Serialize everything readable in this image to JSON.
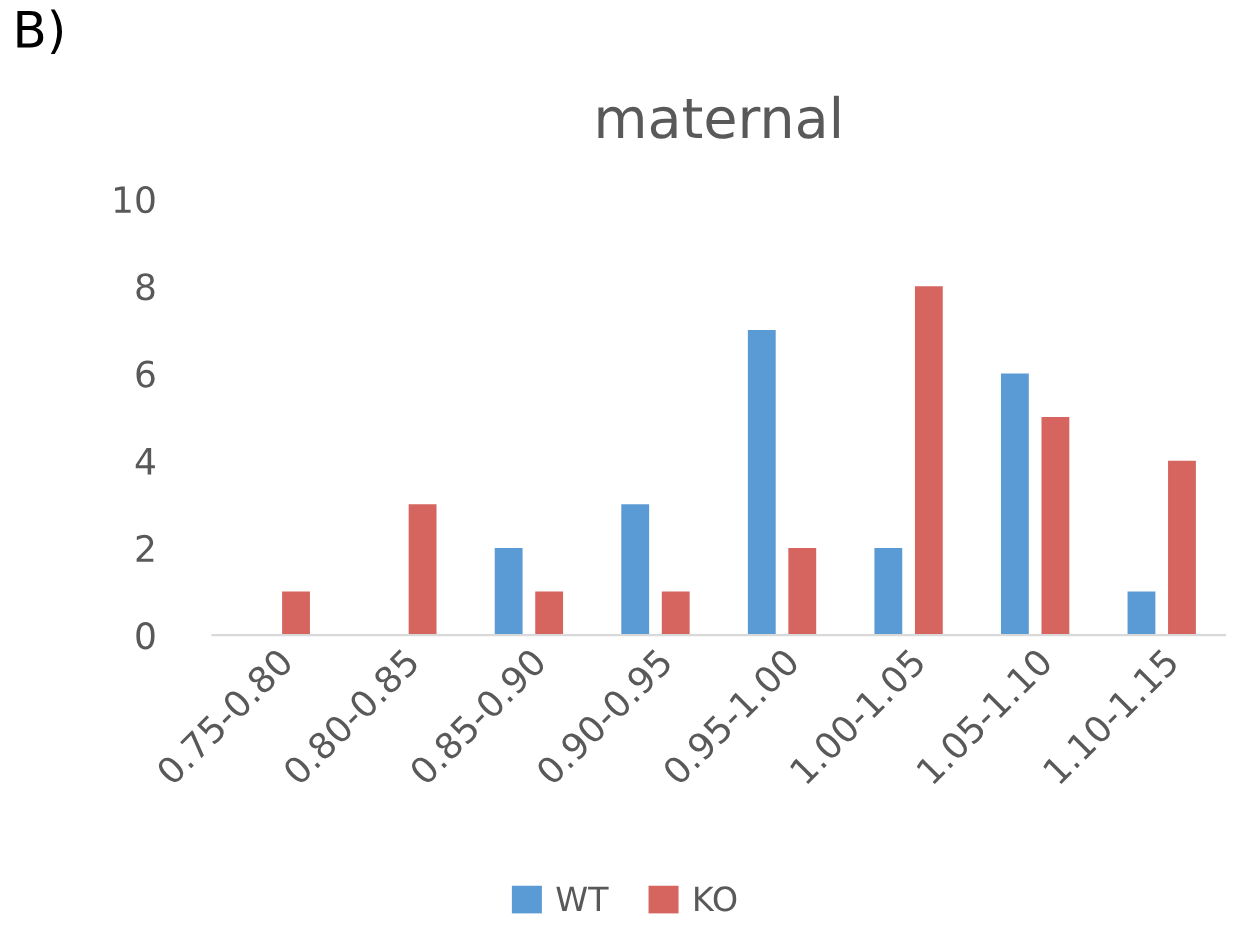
{
  "chart_data": {
    "type": "bar",
    "title": "maternal",
    "annotations": [
      "B)"
    ],
    "categories": [
      "0.75-0.80",
      "0.80-0.85",
      "0.85-0.90",
      "0.90-0.95",
      "0.95-1.00",
      "1.00-1.05",
      "1.05-1.10",
      "1.10-1.15"
    ],
    "series": [
      {
        "name": "WT",
        "color": "#5b9bd5",
        "values": [
          0,
          0,
          2,
          3,
          7,
          2,
          6,
          1
        ]
      },
      {
        "name": "KO",
        "color": "#d6655f",
        "values": [
          1,
          3,
          1,
          1,
          2,
          8,
          5,
          4
        ]
      }
    ],
    "ylim": [
      0,
      10
    ],
    "yticks": [
      0,
      2,
      4,
      6,
      8,
      10
    ],
    "grid": false,
    "legend": "bottom"
  }
}
